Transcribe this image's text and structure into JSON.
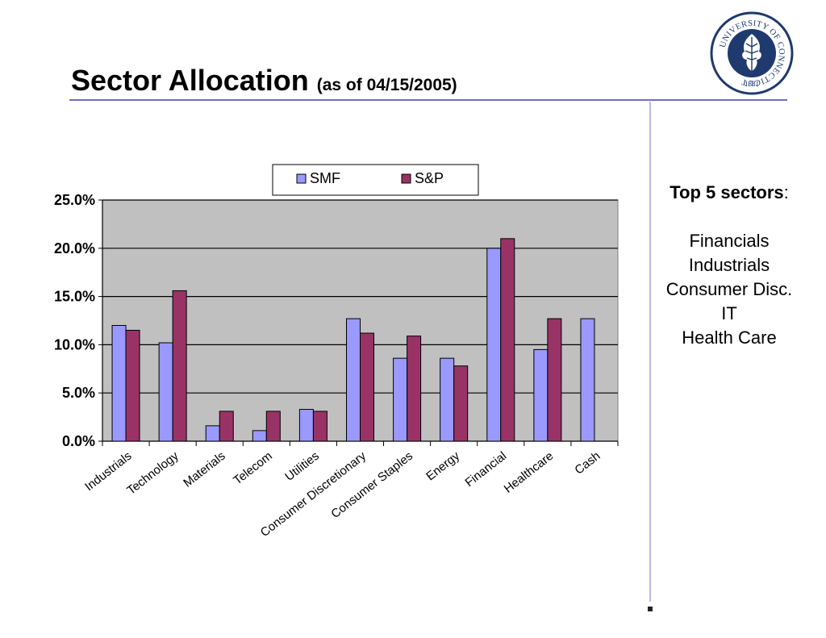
{
  "slide": {
    "title": "Sector Allocation",
    "subtitle": "(as of 04/15/2005)"
  },
  "logo": {
    "ring_text": "UNIVERSITY OF CONNECTICUT",
    "year": "1881",
    "color": "#1f3a6e"
  },
  "sidebar": {
    "heading": "Top 5 sectors",
    "heading_suffix": ":",
    "items": [
      "Financials",
      "Industrials",
      "Consumer Disc.",
      "IT",
      "Health Care"
    ]
  },
  "chart_data": {
    "type": "bar",
    "categories": [
      "Industrials",
      "Technology",
      "Materials",
      "Telecom",
      "Utilities",
      "Consumer Discretionary",
      "Consumer Staples",
      "Energy",
      "Financial",
      "Healthcare",
      "Cash"
    ],
    "series": [
      {
        "name": "SMF",
        "color": "#9999ff",
        "values": [
          12.0,
          10.2,
          1.6,
          1.1,
          3.3,
          12.7,
          8.6,
          8.6,
          20.0,
          9.5,
          12.7
        ]
      },
      {
        "name": "S&P",
        "color": "#993366",
        "values": [
          11.5,
          15.6,
          3.1,
          3.1,
          3.1,
          11.2,
          10.9,
          7.8,
          21.0,
          12.7,
          0
        ]
      }
    ],
    "ylim": [
      0,
      25
    ],
    "yticks": [
      "0.0%",
      "5.0%",
      "10.0%",
      "15.0%",
      "20.0%",
      "25.0%"
    ],
    "grid": true,
    "legend": "top-center",
    "plot_background": "#c0c0c0"
  }
}
